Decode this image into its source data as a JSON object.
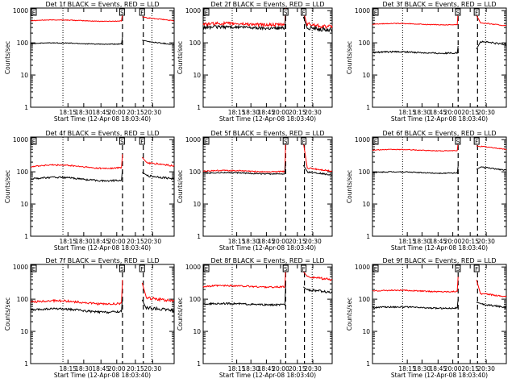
{
  "panels": [
    {
      "title": "Det 1f BLACK = Events, RED = LLD",
      "black": 95,
      "red": 490,
      "blackNoise": 0.06,
      "redNoise": 0.05,
      "blackRise": 150,
      "redRise": 800,
      "blackAfter": 110,
      "redAfter": 600
    },
    {
      "title": "Det 2f BLACK = Events, RED = LLD",
      "black": 300,
      "red": 380,
      "blackNoise": 0.22,
      "redNoise": 0.22,
      "blackRise": 800,
      "redRise": 1200,
      "blackAfter": 300,
      "redAfter": 380
    },
    {
      "title": "Det 3f BLACK = Events, RED = LLD",
      "black": 50,
      "red": 380,
      "blackNoise": 0.1,
      "redNoise": 0.05,
      "blackRise": 80,
      "redRise": 900,
      "blackAfter": 110,
      "redAfter": 420
    },
    {
      "title": "Det 4f BLACK = Events, RED = LLD",
      "black": 60,
      "red": 145,
      "blackNoise": 0.12,
      "redNoise": 0.1,
      "blackRise": 120,
      "redRise": 350,
      "blackAfter": 75,
      "redAfter": 190
    },
    {
      "title": "Det 5f BLACK = Events, RED = LLD",
      "black": 90,
      "red": 105,
      "blackNoise": 0.08,
      "redNoise": 0.08,
      "blackRise": 200,
      "redRise": 1000,
      "blackAfter": 100,
      "redAfter": 130
    },
    {
      "title": "Det 6f BLACK = Events, RED = LLD",
      "black": 95,
      "red": 470,
      "blackNoise": 0.07,
      "redNoise": 0.05,
      "blackRise": 150,
      "redRise": 800,
      "blackAfter": 140,
      "redAfter": 620
    },
    {
      "title": "Det 7f BLACK = Events, RED = LLD",
      "black": 45,
      "red": 80,
      "blackNoise": 0.15,
      "redNoise": 0.15,
      "blackRise": 120,
      "redRise": 400,
      "blackAfter": 55,
      "redAfter": 110
    },
    {
      "title": "Det 8f BLACK = Events, RED = LLD",
      "black": 70,
      "red": 250,
      "blackNoise": 0.12,
      "redNoise": 0.12,
      "blackRise": 300,
      "redRise": 900,
      "blackAfter": 200,
      "redAfter": 500
    },
    {
      "title": "Det 9f BLACK = Events, RED = LLD",
      "black": 55,
      "red": 180,
      "blackNoise": 0.1,
      "redNoise": 0.08,
      "blackRise": 100,
      "redRise": 500,
      "blackAfter": 70,
      "redAfter": 150
    }
  ],
  "ylabel": "Counts/sec",
  "xlabel": "Start Time (12-Apr-08 18:03:40)",
  "xticks": [
    "18:15",
    "18:30",
    "18:45",
    "20:00",
    "20:15",
    "20:30"
  ],
  "yticks": [
    "1",
    "10",
    "100",
    "1000"
  ],
  "flagS": "S",
  "flagE": "E",
  "flagF": "F",
  "colors": {
    "black": "#000000",
    "red": "#ff0000"
  },
  "chart_data": {
    "type": "line",
    "title": "",
    "xlabel": "Start Time (12-Apr-08 18:03:40)",
    "ylabel": "Counts/sec",
    "yscale": "log",
    "ylim": [
      1,
      1200
    ],
    "x": [
      "18:15",
      "18:30",
      "18:45",
      "20:00",
      "20:15",
      "20:30"
    ],
    "series": [
      {
        "name": "BLACK = Events"
      },
      {
        "name": "RED = LLD"
      }
    ]
  }
}
